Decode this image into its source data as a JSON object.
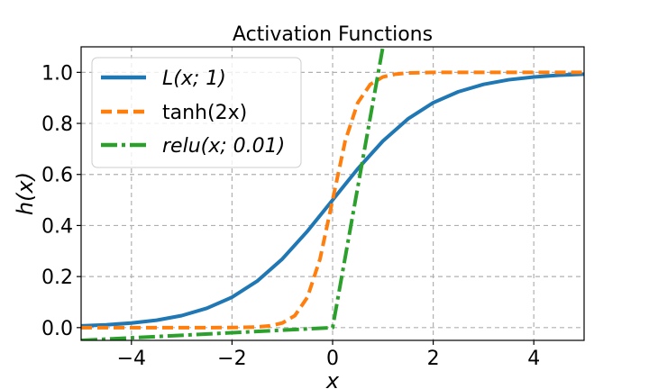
{
  "chart_data": {
    "type": "line",
    "title": "Activation Functions",
    "xlabel": "x",
    "ylabel": "h(x)",
    "xlim": [
      -5,
      5
    ],
    "ylim": [
      -0.05,
      1.1
    ],
    "xticks": [
      -4,
      -2,
      0,
      2,
      4
    ],
    "xtick_labels": [
      "−4",
      "−2",
      "0",
      "2",
      "4"
    ],
    "yticks": [
      0.0,
      0.2,
      0.4,
      0.6,
      0.8,
      1.0
    ],
    "ytick_labels": [
      "0.0",
      "0.2",
      "0.4",
      "0.6",
      "0.8",
      "1.0"
    ],
    "grid": true,
    "legend_position": "top-left",
    "series": [
      {
        "name": "L(x; 1)",
        "color": "#1f77b4",
        "linestyle": "solid",
        "x": [
          -5,
          -4.5,
          -4,
          -3.5,
          -3,
          -2.5,
          -2,
          -1.5,
          -1,
          -0.5,
          0,
          0.5,
          1,
          1.5,
          2,
          2.5,
          3,
          3.5,
          4,
          4.5,
          5
        ],
        "y": [
          0.0067,
          0.011,
          0.018,
          0.029,
          0.047,
          0.076,
          0.119,
          0.182,
          0.269,
          0.378,
          0.5,
          0.622,
          0.731,
          0.818,
          0.881,
          0.924,
          0.953,
          0.971,
          0.982,
          0.989,
          0.993
        ]
      },
      {
        "name": "tanh(2x)",
        "color": "#ff7f0e",
        "linestyle": "dashed",
        "x": [
          -5,
          -4,
          -3,
          -2.5,
          -2,
          -1.5,
          -1.25,
          -1,
          -0.75,
          -0.5,
          -0.25,
          0,
          0.25,
          0.5,
          0.75,
          1,
          1.25,
          1.5,
          2,
          2.5,
          3,
          4,
          5
        ],
        "y": [
          0.0,
          0.0,
          0.0,
          0.0,
          0.0003,
          0.0025,
          0.0067,
          0.018,
          0.047,
          0.119,
          0.269,
          0.5,
          0.731,
          0.881,
          0.953,
          0.982,
          0.993,
          0.9975,
          0.9997,
          1.0,
          1.0,
          1.0,
          1.0
        ]
      },
      {
        "name": "relu(x; 0.01)",
        "color": "#2ca02c",
        "linestyle": "dashdot",
        "x": [
          -5,
          -4,
          -3,
          -2,
          -1,
          0,
          0.5,
          1,
          1.1
        ],
        "y": [
          -0.05,
          -0.04,
          -0.03,
          -0.02,
          -0.01,
          0.0,
          0.55,
          1.1,
          1.21
        ]
      }
    ]
  }
}
